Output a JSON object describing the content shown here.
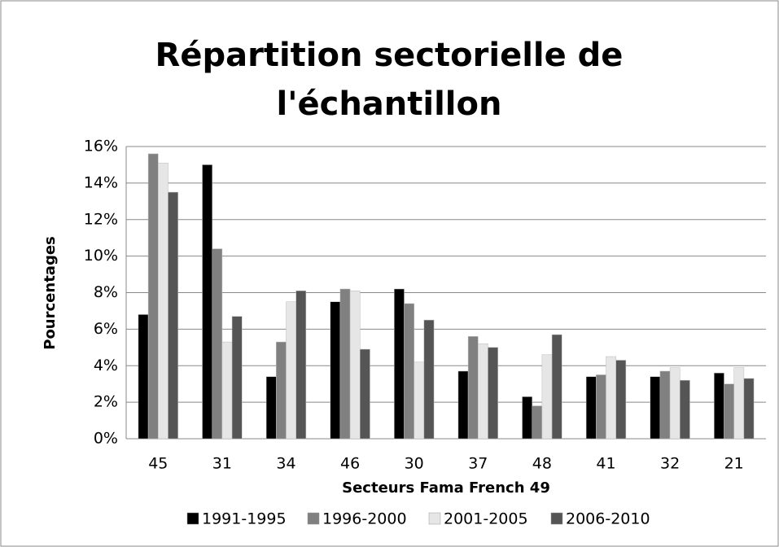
{
  "chart_data": {
    "type": "bar",
    "title": "Répartition sectorielle de l'échantillon",
    "x_label": "Secteurs Fama French 49",
    "y_label": "Pourcentages",
    "categories": [
      "45",
      "31",
      "34",
      "46",
      "30",
      "37",
      "48",
      "41",
      "32",
      "21"
    ],
    "series": [
      {
        "name": "1991-1995",
        "color": "#000000",
        "values": [
          6.8,
          15.0,
          3.4,
          7.5,
          8.2,
          3.7,
          2.3,
          3.4,
          3.4,
          3.6
        ]
      },
      {
        "name": "1996-2000",
        "color": "#808080",
        "values": [
          15.6,
          10.4,
          5.3,
          8.2,
          7.4,
          5.6,
          1.8,
          3.5,
          3.7,
          3.0
        ]
      },
      {
        "name": "2001-2005",
        "color": "#e6e6e6",
        "values": [
          15.1,
          5.3,
          7.5,
          8.1,
          4.2,
          5.2,
          4.6,
          4.5,
          3.9,
          3.9
        ]
      },
      {
        "name": "2006-2010",
        "color": "#555555",
        "values": [
          13.5,
          6.7,
          8.1,
          4.9,
          6.5,
          5.0,
          5.7,
          4.3,
          3.2,
          3.3
        ]
      }
    ],
    "ylim": [
      0,
      16
    ],
    "yticks": [
      {
        "value": 0,
        "label": "0%"
      },
      {
        "value": 2,
        "label": "2%"
      },
      {
        "value": 4,
        "label": "4%"
      },
      {
        "value": 6,
        "label": "6%"
      },
      {
        "value": 8,
        "label": "8%"
      },
      {
        "value": 10,
        "label": "10%"
      },
      {
        "value": 12,
        "label": "12%"
      },
      {
        "value": 14,
        "label": "14%"
      },
      {
        "value": 16,
        "label": "16%"
      }
    ],
    "grid": true,
    "legend": "bottom"
  }
}
